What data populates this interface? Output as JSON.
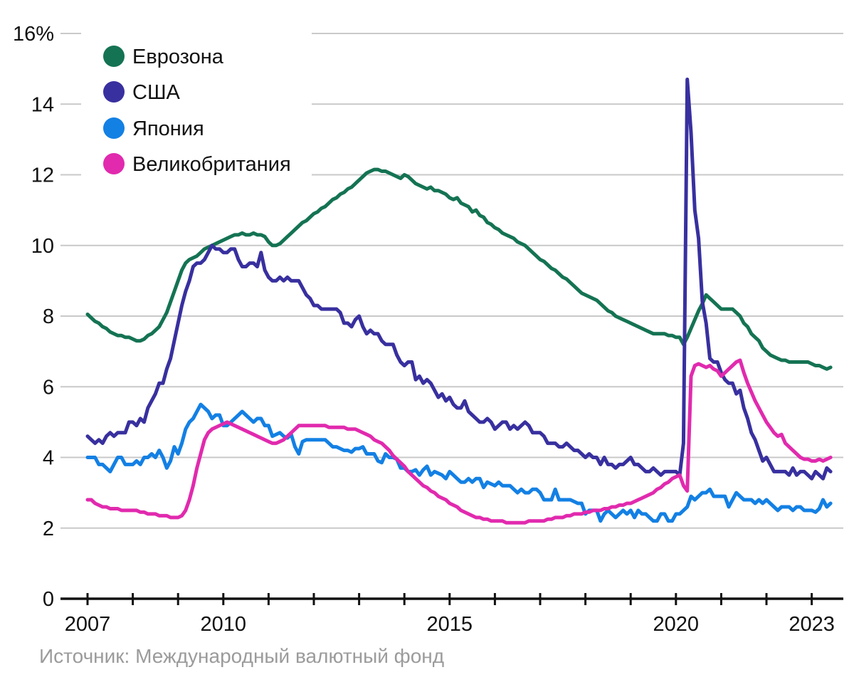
{
  "colors": {
    "background": "#ffffff",
    "gridline": "#c9c9c9",
    "axis": "#111111",
    "text": "#111111",
    "source_text": "#9b9b9b"
  },
  "source_note": "Источник: Международный валютный фонд",
  "chart_data": {
    "type": "line",
    "unit": "%",
    "frequency": "monthly",
    "x_start_year": 2007,
    "x_end": 2023.42,
    "ylim": [
      0,
      16
    ],
    "grid": "horizontal-only",
    "legend_position": "top-left",
    "x_axis": {
      "tick_years": [
        2007,
        2008,
        2009,
        2010,
        2011,
        2012,
        2013,
        2014,
        2015,
        2016,
        2017,
        2018,
        2019,
        2020,
        2021,
        2022,
        2023
      ],
      "labels": [
        {
          "year": 2007,
          "text": "2007"
        },
        {
          "year": 2010,
          "text": "2010"
        },
        {
          "year": 2015,
          "text": "2015"
        },
        {
          "year": 2020,
          "text": "2020"
        },
        {
          "year": 2023,
          "text": "2023"
        }
      ]
    },
    "y_axis": {
      "gridline_values": [
        16,
        14,
        12,
        10,
        8,
        6,
        4,
        2
      ],
      "ticks": [
        {
          "value": 16,
          "label": "16%"
        },
        {
          "value": 14,
          "label": "14"
        },
        {
          "value": 12,
          "label": "12"
        },
        {
          "value": 10,
          "label": "10"
        },
        {
          "value": 8,
          "label": "8"
        },
        {
          "value": 6,
          "label": "6"
        },
        {
          "value": 4,
          "label": "4"
        },
        {
          "value": 2,
          "label": "2"
        },
        {
          "value": 0,
          "label": "0"
        }
      ]
    },
    "series": [
      {
        "id": "eurozone",
        "name": "Еврозона",
        "color": "#147353",
        "values": [
          8.05,
          7.95,
          7.85,
          7.8,
          7.7,
          7.65,
          7.55,
          7.5,
          7.45,
          7.45,
          7.4,
          7.4,
          7.35,
          7.3,
          7.3,
          7.35,
          7.45,
          7.5,
          7.6,
          7.7,
          7.9,
          8.1,
          8.4,
          8.7,
          9.0,
          9.3,
          9.5,
          9.6,
          9.65,
          9.7,
          9.8,
          9.9,
          9.95,
          10.0,
          10.05,
          10.1,
          10.15,
          10.2,
          10.25,
          10.3,
          10.3,
          10.35,
          10.3,
          10.3,
          10.35,
          10.3,
          10.3,
          10.25,
          10.1,
          10.0,
          10.0,
          10.05,
          10.15,
          10.25,
          10.35,
          10.45,
          10.55,
          10.65,
          10.7,
          10.8,
          10.9,
          10.95,
          11.05,
          11.1,
          11.2,
          11.3,
          11.35,
          11.45,
          11.5,
          11.6,
          11.65,
          11.75,
          11.85,
          11.95,
          12.05,
          12.1,
          12.15,
          12.15,
          12.1,
          12.1,
          12.05,
          12.0,
          11.95,
          11.9,
          12.0,
          11.95,
          11.85,
          11.75,
          11.7,
          11.65,
          11.6,
          11.65,
          11.55,
          11.55,
          11.5,
          11.45,
          11.35,
          11.3,
          11.35,
          11.2,
          11.15,
          11.1,
          10.95,
          11.0,
          10.85,
          10.8,
          10.65,
          10.6,
          10.5,
          10.45,
          10.35,
          10.3,
          10.25,
          10.2,
          10.1,
          10.05,
          10.0,
          9.9,
          9.8,
          9.7,
          9.6,
          9.55,
          9.45,
          9.35,
          9.3,
          9.2,
          9.1,
          9.05,
          8.95,
          8.85,
          8.75,
          8.65,
          8.6,
          8.55,
          8.5,
          8.45,
          8.35,
          8.25,
          8.15,
          8.1,
          8.0,
          7.95,
          7.9,
          7.85,
          7.8,
          7.75,
          7.7,
          7.65,
          7.6,
          7.55,
          7.5,
          7.5,
          7.5,
          7.5,
          7.45,
          7.45,
          7.4,
          7.4,
          7.2,
          7.4,
          7.65,
          7.9,
          8.15,
          8.35,
          8.6,
          8.5,
          8.4,
          8.3,
          8.2,
          8.2,
          8.2,
          8.2,
          8.1,
          8.0,
          7.8,
          7.7,
          7.5,
          7.4,
          7.3,
          7.1,
          7.0,
          6.9,
          6.85,
          6.8,
          6.75,
          6.75,
          6.7,
          6.7,
          6.7,
          6.7,
          6.7,
          6.7,
          6.65,
          6.6,
          6.6,
          6.55,
          6.5,
          6.55
        ]
      },
      {
        "id": "usa",
        "name": "США",
        "color": "#38309f",
        "values": [
          4.6,
          4.5,
          4.4,
          4.5,
          4.4,
          4.6,
          4.7,
          4.6,
          4.7,
          4.7,
          4.7,
          5.0,
          5.0,
          4.9,
          5.1,
          5.0,
          5.4,
          5.6,
          5.8,
          6.1,
          6.1,
          6.5,
          6.8,
          7.3,
          7.8,
          8.3,
          8.7,
          9.0,
          9.4,
          9.5,
          9.5,
          9.6,
          9.8,
          10.0,
          9.9,
          9.9,
          9.8,
          9.8,
          9.9,
          9.9,
          9.6,
          9.4,
          9.4,
          9.5,
          9.5,
          9.4,
          9.8,
          9.3,
          9.1,
          9.0,
          9.0,
          9.1,
          9.0,
          9.1,
          9.0,
          9.0,
          9.0,
          8.8,
          8.6,
          8.5,
          8.3,
          8.3,
          8.2,
          8.2,
          8.2,
          8.2,
          8.2,
          8.1,
          7.8,
          7.8,
          7.7,
          7.9,
          8.0,
          7.7,
          7.5,
          7.6,
          7.5,
          7.5,
          7.3,
          7.2,
          7.2,
          7.2,
          6.9,
          6.7,
          6.6,
          6.7,
          6.7,
          6.2,
          6.3,
          6.1,
          6.2,
          6.1,
          5.9,
          5.7,
          5.8,
          5.6,
          5.7,
          5.5,
          5.4,
          5.4,
          5.6,
          5.3,
          5.2,
          5.1,
          5.0,
          5.0,
          5.1,
          5.0,
          4.8,
          4.9,
          5.0,
          5.0,
          4.8,
          4.9,
          4.8,
          4.9,
          5.0,
          4.9,
          4.7,
          4.7,
          4.7,
          4.6,
          4.4,
          4.4,
          4.4,
          4.3,
          4.3,
          4.4,
          4.3,
          4.2,
          4.2,
          4.1,
          4.0,
          4.1,
          4.0,
          4.0,
          3.8,
          4.0,
          3.8,
          3.8,
          3.7,
          3.8,
          3.8,
          3.9,
          4.0,
          3.8,
          3.8,
          3.7,
          3.6,
          3.6,
          3.7,
          3.6,
          3.5,
          3.6,
          3.6,
          3.6,
          3.6,
          3.5,
          4.4,
          14.7,
          13.2,
          11.0,
          10.2,
          8.4,
          7.8,
          6.8,
          6.7,
          6.7,
          6.4,
          6.2,
          6.1,
          6.1,
          5.8,
          5.9,
          5.4,
          5.1,
          4.7,
          4.5,
          4.2,
          3.9,
          4.0,
          3.8,
          3.6,
          3.6,
          3.6,
          3.6,
          3.5,
          3.7,
          3.5,
          3.6,
          3.6,
          3.5,
          3.4,
          3.6,
          3.5,
          3.4,
          3.7,
          3.6
        ]
      },
      {
        "id": "japan",
        "name": "Япония",
        "color": "#1380e4",
        "values": [
          4.0,
          4.0,
          4.0,
          3.8,
          3.8,
          3.7,
          3.6,
          3.8,
          4.0,
          4.0,
          3.8,
          3.8,
          3.8,
          3.9,
          3.8,
          4.0,
          4.0,
          4.1,
          4.0,
          4.2,
          4.0,
          3.7,
          3.9,
          4.3,
          4.1,
          4.4,
          4.8,
          5.0,
          5.1,
          5.3,
          5.5,
          5.4,
          5.3,
          5.1,
          5.2,
          5.2,
          4.9,
          4.9,
          5.0,
          5.1,
          5.2,
          5.3,
          5.2,
          5.1,
          5.0,
          5.1,
          5.1,
          4.9,
          4.9,
          4.6,
          4.65,
          4.7,
          4.6,
          4.55,
          4.65,
          4.3,
          4.1,
          4.45,
          4.5,
          4.5,
          4.5,
          4.5,
          4.5,
          4.5,
          4.4,
          4.3,
          4.3,
          4.25,
          4.2,
          4.2,
          4.15,
          4.25,
          4.25,
          4.3,
          4.1,
          4.1,
          4.1,
          3.9,
          3.85,
          4.1,
          4.0,
          4.0,
          3.95,
          3.7,
          3.7,
          3.6,
          3.6,
          3.65,
          3.5,
          3.65,
          3.75,
          3.5,
          3.6,
          3.55,
          3.5,
          3.4,
          3.6,
          3.5,
          3.4,
          3.3,
          3.3,
          3.4,
          3.3,
          3.4,
          3.4,
          3.15,
          3.3,
          3.25,
          3.2,
          3.3,
          3.2,
          3.2,
          3.2,
          3.1,
          3.0,
          3.1,
          3.0,
          3.0,
          3.1,
          3.1,
          3.0,
          2.8,
          2.8,
          2.8,
          3.1,
          2.8,
          2.8,
          2.8,
          2.8,
          2.75,
          2.7,
          2.7,
          2.4,
          2.5,
          2.5,
          2.5,
          2.2,
          2.4,
          2.5,
          2.4,
          2.3,
          2.4,
          2.5,
          2.4,
          2.5,
          2.3,
          2.5,
          2.4,
          2.4,
          2.3,
          2.2,
          2.2,
          2.4,
          2.4,
          2.2,
          2.2,
          2.4,
          2.4,
          2.5,
          2.6,
          2.9,
          2.8,
          2.9,
          3.0,
          3.0,
          3.1,
          2.9,
          2.9,
          2.9,
          2.9,
          2.6,
          2.8,
          3.0,
          2.9,
          2.8,
          2.8,
          2.8,
          2.7,
          2.8,
          2.7,
          2.8,
          2.7,
          2.6,
          2.5,
          2.6,
          2.6,
          2.6,
          2.5,
          2.6,
          2.6,
          2.5,
          2.5,
          2.5,
          2.45,
          2.55,
          2.8,
          2.6,
          2.7
        ]
      },
      {
        "id": "uk",
        "name": "Великобритания",
        "color": "#e12aae",
        "values": [
          2.8,
          2.8,
          2.7,
          2.65,
          2.6,
          2.6,
          2.55,
          2.55,
          2.55,
          2.5,
          2.5,
          2.5,
          2.5,
          2.5,
          2.45,
          2.45,
          2.4,
          2.4,
          2.4,
          2.35,
          2.35,
          2.35,
          2.3,
          2.3,
          2.3,
          2.35,
          2.5,
          2.8,
          3.2,
          3.7,
          4.1,
          4.5,
          4.7,
          4.8,
          4.85,
          4.9,
          4.95,
          5.0,
          4.95,
          4.9,
          4.85,
          4.8,
          4.75,
          4.7,
          4.65,
          4.6,
          4.55,
          4.5,
          4.45,
          4.4,
          4.4,
          4.45,
          4.5,
          4.6,
          4.7,
          4.8,
          4.9,
          4.9,
          4.9,
          4.9,
          4.9,
          4.9,
          4.9,
          4.9,
          4.85,
          4.85,
          4.85,
          4.85,
          4.85,
          4.8,
          4.8,
          4.8,
          4.75,
          4.7,
          4.65,
          4.6,
          4.5,
          4.45,
          4.4,
          4.3,
          4.2,
          4.05,
          3.95,
          3.85,
          3.75,
          3.6,
          3.5,
          3.4,
          3.3,
          3.2,
          3.15,
          3.05,
          3.0,
          2.9,
          2.85,
          2.8,
          2.7,
          2.65,
          2.6,
          2.5,
          2.45,
          2.4,
          2.35,
          2.3,
          2.3,
          2.25,
          2.25,
          2.2,
          2.2,
          2.2,
          2.2,
          2.15,
          2.15,
          2.15,
          2.15,
          2.15,
          2.15,
          2.2,
          2.2,
          2.2,
          2.2,
          2.2,
          2.25,
          2.25,
          2.3,
          2.3,
          2.3,
          2.35,
          2.35,
          2.4,
          2.4,
          2.4,
          2.45,
          2.45,
          2.5,
          2.5,
          2.5,
          2.55,
          2.55,
          2.6,
          2.6,
          2.65,
          2.65,
          2.7,
          2.7,
          2.75,
          2.8,
          2.85,
          2.9,
          2.95,
          3.0,
          3.1,
          3.15,
          3.25,
          3.3,
          3.4,
          3.45,
          3.5,
          3.2,
          3.05,
          6.3,
          6.6,
          6.65,
          6.6,
          6.55,
          6.6,
          6.5,
          6.45,
          6.3,
          6.4,
          6.5,
          6.6,
          6.7,
          6.75,
          6.4,
          6.1,
          5.85,
          5.6,
          5.4,
          5.2,
          5.0,
          4.85,
          4.7,
          4.6,
          4.65,
          4.4,
          4.3,
          4.2,
          4.1,
          4.0,
          3.95,
          3.95,
          3.9,
          3.9,
          3.95,
          3.9,
          3.95,
          4.0
        ]
      }
    ],
    "source": "Источник: Международный валютный фонд"
  }
}
